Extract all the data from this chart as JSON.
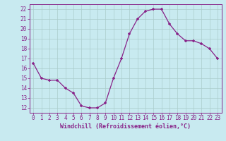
{
  "x": [
    0,
    1,
    2,
    3,
    4,
    5,
    6,
    7,
    8,
    9,
    10,
    11,
    12,
    13,
    14,
    15,
    16,
    17,
    18,
    19,
    20,
    21,
    22,
    23
  ],
  "y": [
    16.5,
    15.0,
    14.8,
    14.8,
    14.0,
    13.5,
    12.2,
    12.0,
    12.0,
    12.5,
    15.0,
    17.0,
    19.5,
    21.0,
    21.8,
    22.0,
    22.0,
    20.5,
    19.5,
    18.8,
    18.8,
    18.5,
    18.0,
    17.0
  ],
  "line_color": "#882288",
  "marker": "+",
  "marker_color": "#882288",
  "bg_color": "#c8eaf0",
  "grid_color": "#aacccc",
  "xlabel": "Windchill (Refroidissement éolien,°C)",
  "xlabel_color": "#882288",
  "tick_color": "#882288",
  "spine_color": "#882288",
  "ylim": [
    11.5,
    22.5
  ],
  "yticks": [
    12,
    13,
    14,
    15,
    16,
    17,
    18,
    19,
    20,
    21,
    22
  ],
  "xticks": [
    0,
    1,
    2,
    3,
    4,
    5,
    6,
    7,
    8,
    9,
    10,
    11,
    12,
    13,
    14,
    15,
    16,
    17,
    18,
    19,
    20,
    21,
    22,
    23
  ],
  "xlabel_fontsize": 6.0,
  "tick_fontsize": 5.5
}
